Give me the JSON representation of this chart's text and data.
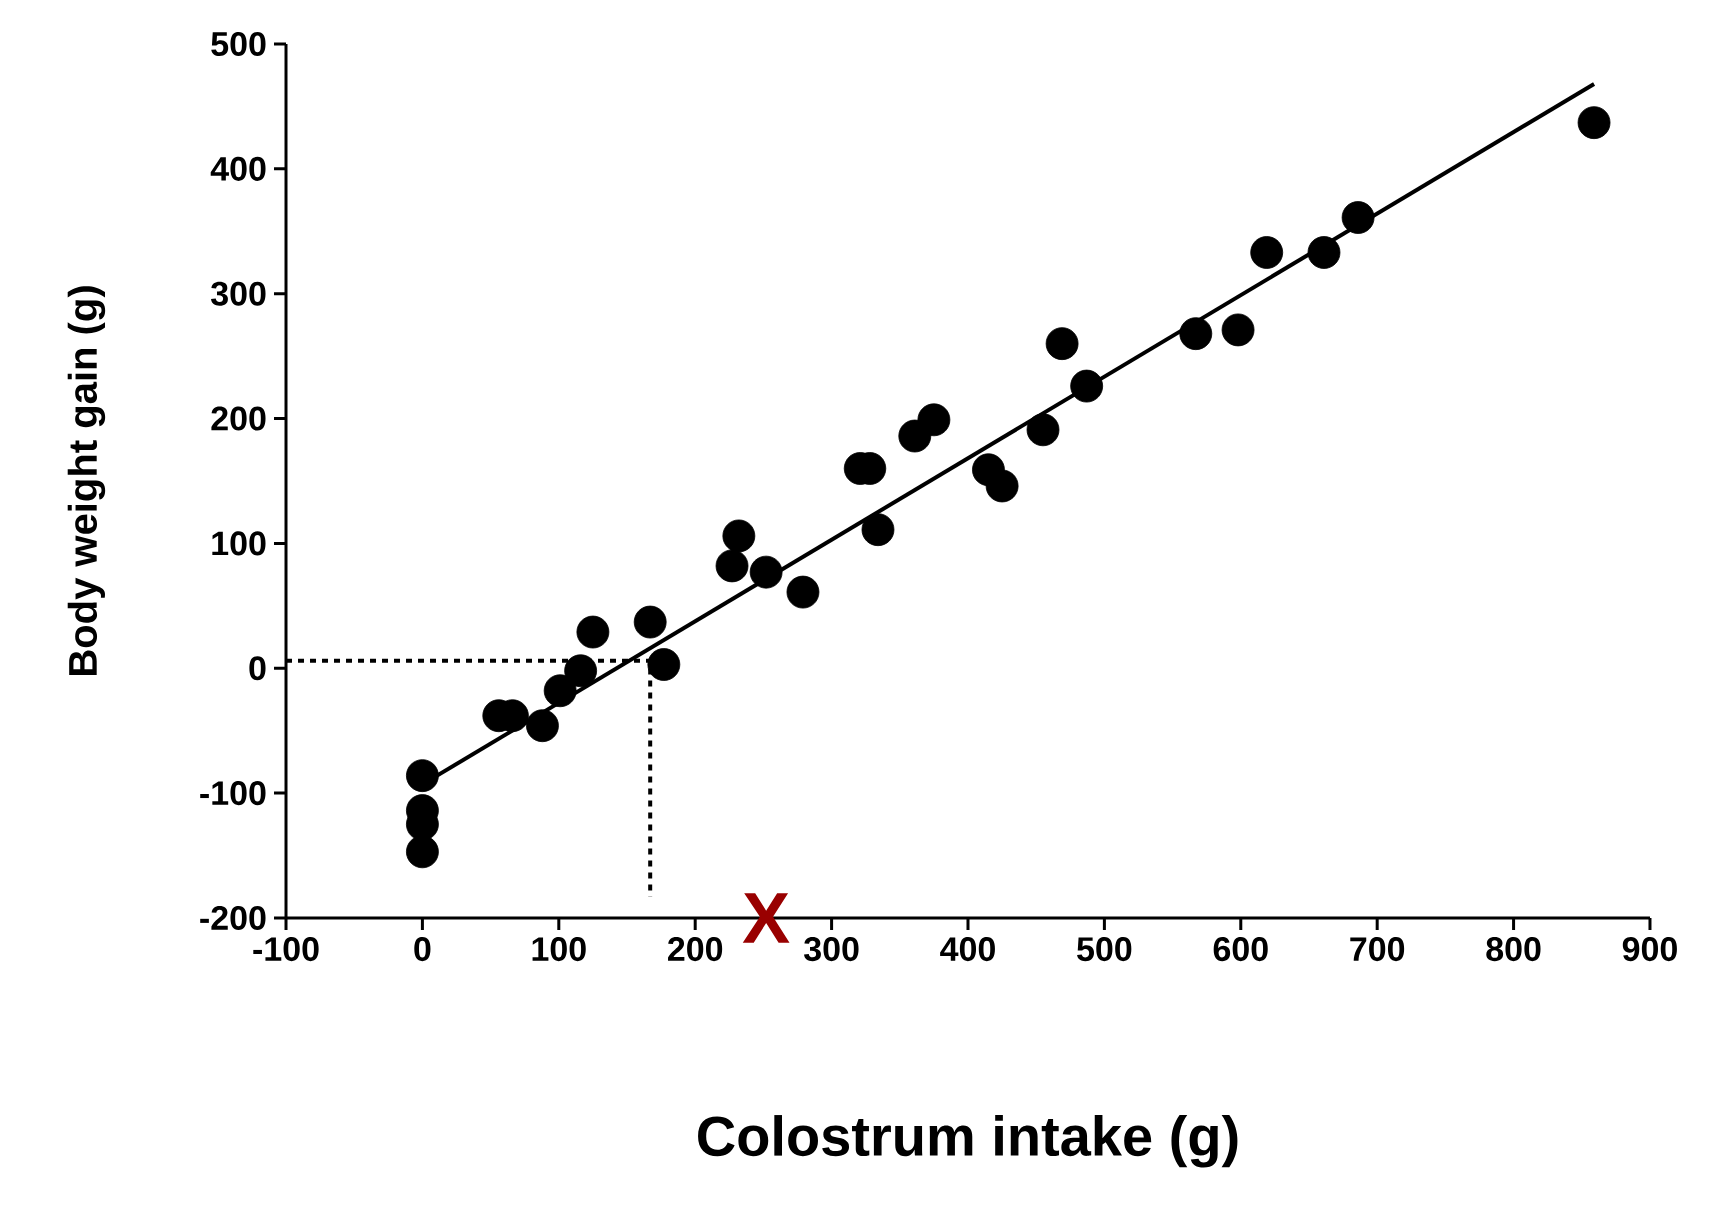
{
  "chart_data": {
    "type": "scatter",
    "xlabel": "Colostrum intake (g)",
    "ylabel": "Body weight gain (g)",
    "xlim": [
      -100,
      900
    ],
    "xticks": [
      -100,
      0,
      100,
      200,
      300,
      400,
      500,
      600,
      700,
      800,
      900
    ],
    "ylim": [
      -200,
      500
    ],
    "yticks": [
      -200,
      -100,
      0,
      100,
      200,
      300,
      400,
      500
    ],
    "grid": false,
    "series": [
      {
        "color": "#000000",
        "x": [
          0,
          0,
          0,
          0,
          56,
          66,
          88,
          101,
          116,
          125,
          167,
          177,
          227,
          232,
          252,
          279,
          321,
          328,
          334,
          361,
          375,
          415,
          425,
          455,
          469,
          487,
          567,
          598,
          619,
          661,
          686,
          859
        ],
        "values": [
          -86,
          -114,
          -125,
          -147,
          -38,
          -38,
          -46,
          -18,
          -2,
          29,
          37,
          3,
          82,
          106,
          77,
          61,
          160,
          160,
          111,
          186,
          199,
          159,
          146,
          191,
          260,
          226,
          268,
          271,
          333,
          333,
          361,
          437
        ]
      },
      {
        "type": "line",
        "color": "#000000",
        "line_style": "solid",
        "x": [
          0,
          859
        ],
        "values": [
          -93,
          468
        ]
      },
      {
        "type": "line",
        "color": "#000000",
        "line_style": "dotted",
        "x": [
          -100,
          167,
          167
        ],
        "values": [
          6,
          6,
          -183
        ]
      }
    ],
    "annotations": [
      "X"
    ]
  }
}
